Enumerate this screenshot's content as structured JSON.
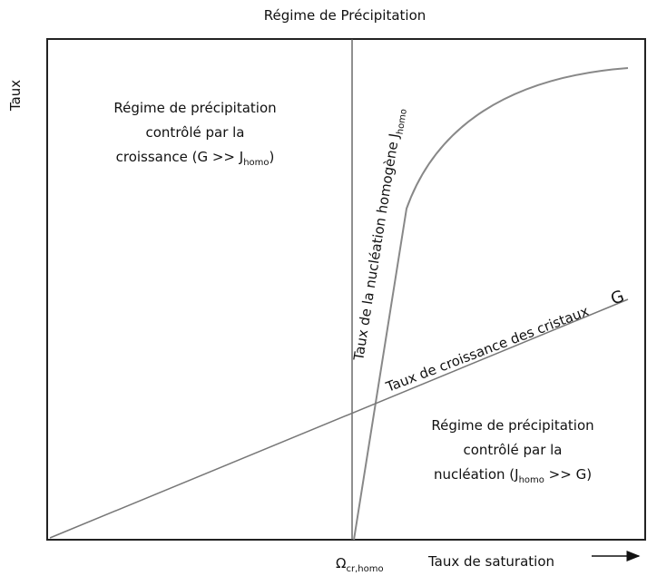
{
  "title": "Régime de Précipitation",
  "y_axis_label": "Taux",
  "x_axis_label": "Taux de saturation",
  "x_marker": {
    "symbol": "Ω",
    "sub": "cr,homo"
  },
  "region_growth": {
    "line1": "Régime de précipitation",
    "line2": "contrôlé par la",
    "line3": {
      "before": "croissance (G >> J",
      "sub": "homo",
      "after": ")"
    }
  },
  "region_nucleation": {
    "line1": "Régime de précipitation",
    "line2": "contrôlé par la",
    "line3": {
      "before": "nucléation (J",
      "sub": "homo",
      "after": " >> G)"
    }
  },
  "nucleation_curve_label": {
    "before": "Taux de la nucléation homogène J",
    "sub": "homo"
  },
  "growth_curve_label": "Taux de croissance des cristaux",
  "growth_symbol": "G"
}
